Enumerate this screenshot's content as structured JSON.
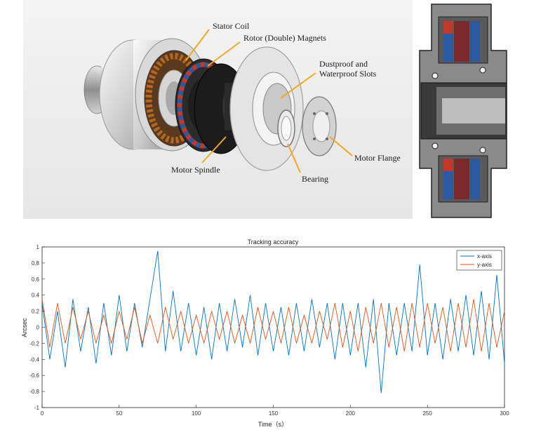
{
  "labels": {
    "stator_coil": "Stator Coil",
    "rotor_magnets": "Rotor (Double) Magnets",
    "slots_line1": "Dustproof and",
    "slots_line2": "Waterproof Slots",
    "motor_spindle": "Motor Spindle",
    "bearing": "Bearing",
    "motor_flange": "Motor Flange"
  },
  "colors": {
    "x_axis": "#0072BD",
    "y_axis": "#D95319",
    "coil_copper": "#b5651d",
    "magnet_red": "#c0392b",
    "magnet_blue": "#2c5aa0"
  },
  "chart_data": {
    "type": "line",
    "title": "Tracking accuracy",
    "xlabel": "Time（s）",
    "ylabel": "Arcsec",
    "xlim": [
      0,
      300
    ],
    "ylim": [
      -1,
      1
    ],
    "xticks": [
      0,
      50,
      100,
      150,
      200,
      250,
      300
    ],
    "yticks": [
      -1,
      -0.8,
      -0.6,
      -0.4,
      -0.2,
      0,
      0.2,
      0.4,
      0.6,
      0.8,
      1
    ],
    "legend_position": "top-right",
    "grid": false,
    "series": [
      {
        "name": "x-axis",
        "color": "#0072BD",
        "x": [
          0,
          5,
          10,
          15,
          20,
          25,
          30,
          35,
          40,
          45,
          50,
          55,
          60,
          65,
          70,
          75,
          80,
          85,
          90,
          95,
          100,
          105,
          110,
          115,
          120,
          125,
          130,
          135,
          140,
          145,
          150,
          155,
          160,
          165,
          170,
          175,
          180,
          185,
          190,
          195,
          200,
          205,
          210,
          215,
          220,
          225,
          230,
          235,
          240,
          245,
          250,
          255,
          260,
          265,
          270,
          275,
          280,
          285,
          290,
          295,
          300
        ],
        "values": [
          0.3,
          -0.4,
          0.2,
          -0.5,
          0.35,
          -0.3,
          0.25,
          -0.45,
          0.3,
          -0.35,
          0.4,
          -0.3,
          0.3,
          -0.25,
          0.35,
          0.95,
          -0.3,
          0.45,
          -0.3,
          0.3,
          -0.35,
          0.25,
          -0.4,
          0.3,
          -0.3,
          0.35,
          -0.25,
          0.4,
          -0.35,
          0.3,
          -0.3,
          0.25,
          -0.35,
          0.3,
          -0.3,
          0.35,
          -0.25,
          0.3,
          -0.4,
          0.3,
          -0.35,
          0.3,
          -0.5,
          0.35,
          -0.82,
          0.3,
          -0.35,
          0.3,
          -0.3,
          0.78,
          -0.35,
          0.3,
          -0.4,
          0.35,
          -0.3,
          0.4,
          -0.35,
          0.45,
          -0.4,
          0.65,
          -0.45
        ]
      },
      {
        "name": "y-axis",
        "color": "#D95319",
        "x": [
          0,
          5,
          10,
          15,
          20,
          25,
          30,
          35,
          40,
          45,
          50,
          55,
          60,
          65,
          70,
          75,
          80,
          85,
          90,
          95,
          100,
          105,
          110,
          115,
          120,
          125,
          130,
          135,
          140,
          145,
          150,
          155,
          160,
          165,
          170,
          175,
          180,
          185,
          190,
          195,
          200,
          205,
          210,
          215,
          220,
          225,
          230,
          235,
          240,
          245,
          250,
          255,
          260,
          265,
          270,
          275,
          280,
          285,
          290,
          295,
          300
        ],
        "values": [
          0.35,
          -0.25,
          0.3,
          -0.2,
          0.25,
          -0.15,
          0.2,
          -0.2,
          0.15,
          -0.2,
          0.2,
          -0.15,
          0.25,
          -0.2,
          0.15,
          -0.2,
          0.25,
          -0.15,
          0.2,
          -0.2,
          0.15,
          -0.2,
          0.2,
          -0.15,
          0.2,
          -0.2,
          0.15,
          -0.2,
          0.25,
          -0.15,
          0.2,
          -0.2,
          0.25,
          -0.2,
          0.15,
          -0.2,
          0.2,
          -0.15,
          0.3,
          -0.25,
          0.2,
          -0.3,
          0.25,
          -0.2,
          0.3,
          -0.25,
          0.25,
          -0.3,
          0.3,
          -0.25,
          0.3,
          -0.2,
          0.25,
          -0.3,
          0.3,
          -0.25,
          0.35,
          -0.3,
          0.3,
          -0.25,
          0.2
        ]
      }
    ]
  }
}
